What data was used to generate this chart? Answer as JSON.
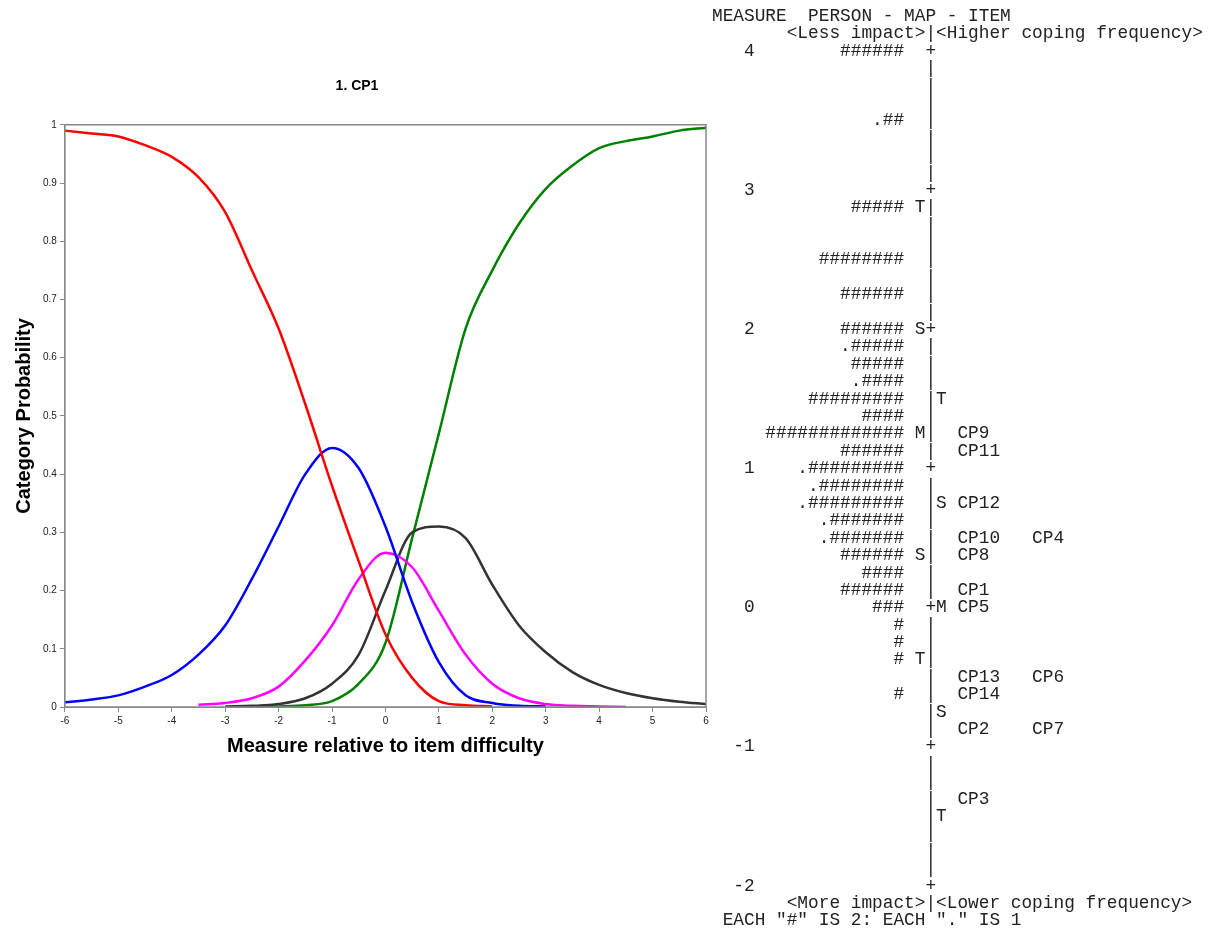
{
  "chart_data": [
    {
      "type": "line",
      "title": "1. CP1",
      "xlabel": "Measure relative to item difficulty",
      "ylabel": "Category Probability",
      "x": [
        -6,
        -5.5,
        -5,
        -4.5,
        -4,
        -3.5,
        -3,
        -2.5,
        -2,
        -1.5,
        -1,
        -0.5,
        0,
        0.5,
        1,
        1.5,
        2,
        2.5,
        3,
        3.5,
        4,
        4.5,
        5,
        5.5,
        6
      ],
      "series": [
        {
          "color": "#ff0000",
          "values": [
            0.99,
            0.985,
            0.98,
            0.965,
            0.945,
            0.91,
            0.85,
            0.75,
            0.65,
            0.52,
            0.38,
            0.25,
            0.125,
            0.05,
            0.01,
            0.003,
            0.001,
            null,
            null,
            null,
            null,
            null,
            null,
            null,
            null
          ]
        },
        {
          "color": "#0000ff",
          "values": [
            0.008,
            0.013,
            0.02,
            0.035,
            0.055,
            0.09,
            0.14,
            0.22,
            0.31,
            0.4,
            0.445,
            0.41,
            0.31,
            0.18,
            0.077,
            0.02,
            0.007,
            0.002,
            0.001,
            null,
            null,
            null,
            null,
            null,
            null
          ]
        },
        {
          "color": "#ff00ff",
          "values": [
            null,
            null,
            null,
            null,
            null,
            0.004,
            0.007,
            0.015,
            0.035,
            0.08,
            0.14,
            0.22,
            0.265,
            0.24,
            0.165,
            0.09,
            0.04,
            0.015,
            0.005,
            0.002,
            0.001,
            0,
            null,
            null,
            null
          ]
        },
        {
          "color": "#333333",
          "values": [
            null,
            null,
            null,
            null,
            null,
            null,
            0.001,
            0.002,
            0.005,
            0.015,
            0.04,
            0.09,
            0.2,
            0.3,
            0.31,
            0.29,
            0.21,
            0.14,
            0.094,
            0.06,
            0.038,
            0.024,
            0.015,
            0.009,
            0.005
          ]
        },
        {
          "color": "#008000",
          "values": [
            null,
            null,
            null,
            null,
            null,
            null,
            null,
            0,
            0.001,
            0.003,
            0.01,
            0.04,
            0.11,
            0.29,
            0.47,
            0.65,
            0.75,
            0.83,
            0.89,
            0.93,
            0.96,
            0.972,
            0.98,
            0.99,
            0.995
          ]
        }
      ],
      "xlim": [
        -6,
        6
      ],
      "xticks": [
        -6,
        -5,
        -4,
        -3,
        -2,
        -1,
        0,
        1,
        2,
        3,
        4,
        5,
        6
      ],
      "ylim": [
        0,
        1
      ],
      "yticks": [
        0,
        0.1,
        0.2,
        0.3,
        0.4,
        0.5,
        0.6,
        0.7,
        0.8,
        0.9,
        1
      ],
      "grid": false,
      "legend": false,
      "marker": "none",
      "line_style": "solid"
    },
    {
      "type": "other",
      "annotations": [
        "MEASURE  PERSON - MAP - ITEM",
        "       <Less impact>|<Higher coping frequency>",
        "   4        ######  +",
        "                    |",
        "                    |",
        "                    |",
        "               .##  |",
        "                    |",
        "                    |",
        "                    |",
        "   3                +",
        "             ##### T|",
        "                    |",
        "                    |",
        "          ########  |",
        "                    |",
        "            ######  |",
        "                    |",
        "   2        ###### S+",
        "            .#####  |",
        "             #####  |",
        "             .####  |",
        "         #########  |T",
        "              ####  |",
        "     ############# M|  CP9",
        "            ######  |  CP11",
        "   1    .#########  +",
        "         .########  |",
        "        .#########  |S CP12",
        "          .#######  |",
        "          .#######  |  CP10   CP4",
        "            ###### S|  CP8",
        "              ####  |",
        "            ######  |  CP1",
        "   0           ###  +M CP5",
        "                 #  |",
        "                 #  |",
        "                 # T|",
        "                    |  CP13   CP6",
        "                 #  |  CP14",
        "                    |S",
        "                    |  CP2    CP7",
        "  -1                +",
        "                    |",
        "                    |",
        "                    |  CP3",
        "                    |T",
        "                    |",
        "                    |",
        "                    |",
        "  -2                +",
        "       <More impact>|<Lower coping frequency>",
        " EACH \"#\" IS 2: EACH \".\" IS 1"
      ]
    }
  ]
}
